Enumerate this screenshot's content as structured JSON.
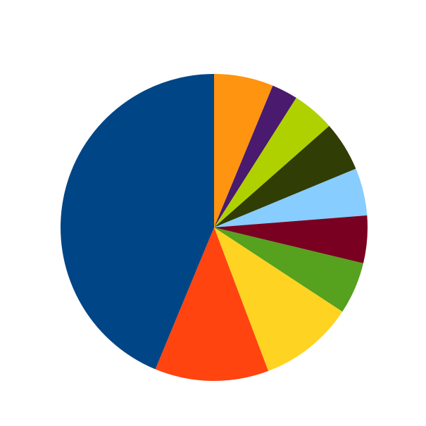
{
  "chart_data": {
    "type": "pie",
    "values": [
      6.25,
      2.75,
      4.5,
      5.25,
      5,
      5,
      5.5,
      10,
      12,
      43.75
    ],
    "colors": [
      "#ff9410",
      "#4a1a6e",
      "#b0d100",
      "#303d04",
      "#87cdff",
      "#790020",
      "#56a11e",
      "#ffd322",
      "#ff4410",
      "#004586"
    ]
  }
}
